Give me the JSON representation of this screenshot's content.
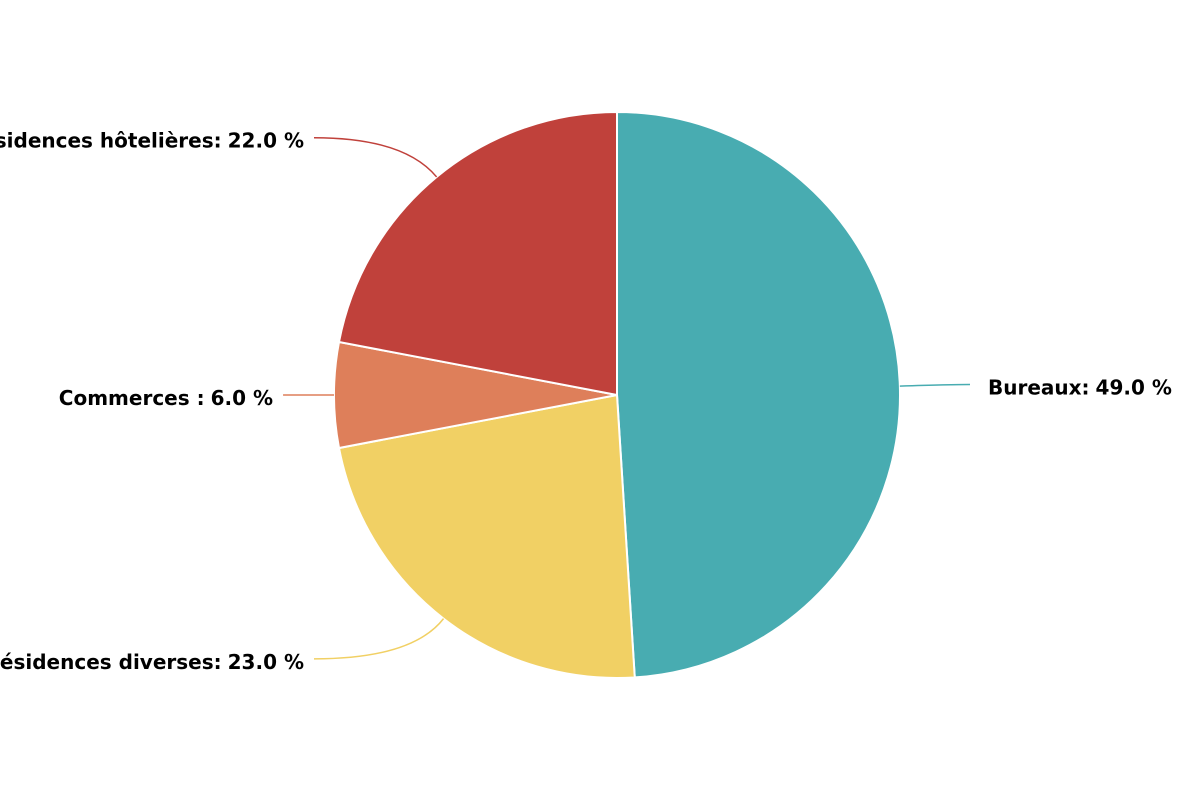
{
  "chart_data": {
    "type": "pie",
    "categories": [
      "Bureaux:",
      "Résidences diverses:",
      "Commerces :",
      "Résidences hôtelières:"
    ],
    "values": [
      49.0,
      23.0,
      6.0,
      22.0
    ],
    "value_labels": [
      "49.0 %",
      "23.0 %",
      "6.0 %",
      "22.0 %"
    ],
    "colors": [
      "#48acb1",
      "#f1d064",
      "#de7f5a",
      "#c0413b"
    ]
  }
}
